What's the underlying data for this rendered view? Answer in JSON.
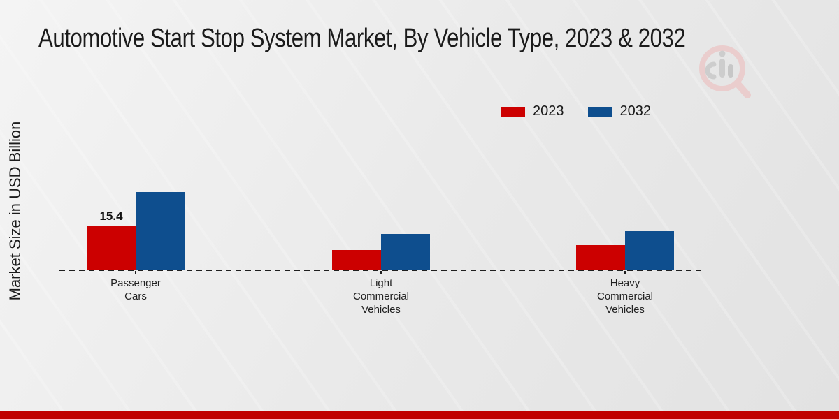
{
  "header": {
    "title": "Automotive Start Stop System Market, By Vehicle Type, 2023 & 2032"
  },
  "legend": [
    {
      "label": "2023",
      "color": "#cc0000"
    },
    {
      "label": "2032",
      "color": "#0e4e8e"
    }
  ],
  "watermark": {
    "icon": "magnifier-bar-chart-logo"
  },
  "footer": {
    "band_color": "#c00000"
  },
  "chart_data": {
    "type": "bar",
    "title": "Automotive Start Stop System Market, By Vehicle Type, 2023 & 2032",
    "categories": [
      "Passenger Cars",
      "Light Commercial Vehicles",
      "Heavy Commercial Vehicles"
    ],
    "series": [
      {
        "name": "2023",
        "color": "#cc0000",
        "values": [
          15.4,
          7.0,
          8.7
        ],
        "data_labels": [
          "15.4",
          null,
          null
        ]
      },
      {
        "name": "2032",
        "color": "#0e4e8e",
        "values": [
          27.1,
          12.6,
          13.6
        ],
        "data_labels": [
          null,
          null,
          null
        ]
      }
    ],
    "xlabel": "",
    "ylabel": "Market Size in USD Billion",
    "ylim": [
      0,
      30
    ],
    "grid": false,
    "y_axis_visible": false,
    "baseline_style": "dashed",
    "legend_position": "top-right"
  }
}
